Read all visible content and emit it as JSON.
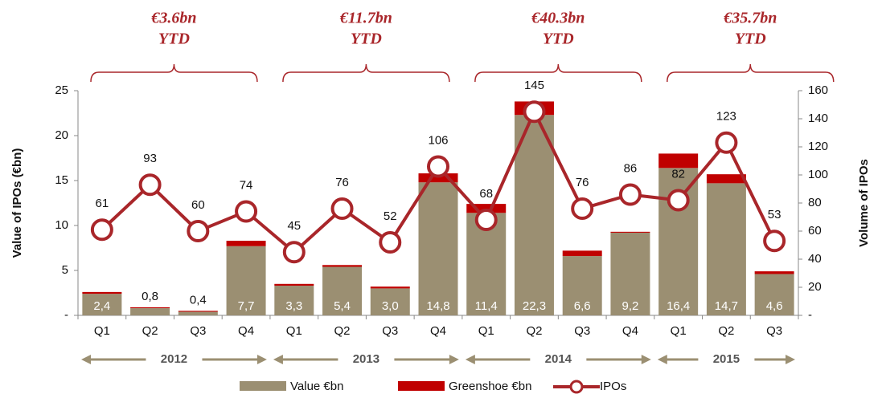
{
  "chart_data": {
    "type": "bar-line",
    "y_label": "Value of IPOs (€bn)",
    "y2_label": "Volume of IPOs",
    "categories": [
      "Q1",
      "Q2",
      "Q3",
      "Q4",
      "Q1",
      "Q2",
      "Q3",
      "Q4",
      "Q1",
      "Q2",
      "Q3",
      "Q4",
      "Q1",
      "Q2",
      "Q3"
    ],
    "years": [
      "2012",
      "2013",
      "2014",
      "2015"
    ],
    "annotations": [
      [
        "€3.6bn",
        "YTD"
      ],
      [
        "€11.7bn",
        "YTD"
      ],
      [
        "€40.3bn",
        "YTD"
      ],
      [
        "€35.7bn",
        "YTD"
      ]
    ],
    "series": [
      {
        "name": "Value €bn",
        "color": "#9b8f72",
        "kind": "bar",
        "values": [
          2.4,
          0.8,
          0.4,
          7.7,
          3.3,
          5.4,
          3.0,
          14.8,
          11.4,
          22.3,
          6.6,
          9.2,
          16.4,
          14.7,
          4.6
        ],
        "value_labels": [
          "2,4",
          "0,8",
          "0,4",
          "7,7",
          "3,3",
          "5,4",
          "3,0",
          "14,8",
          "11,4",
          "22,3",
          "6,6",
          "9,2",
          "16,4",
          "14,7",
          "4,6"
        ]
      },
      {
        "name": "Greenshoe €bn",
        "color": "#c00000",
        "kind": "bar",
        "values": [
          0.2,
          0.1,
          0.1,
          0.6,
          0.2,
          0.2,
          0.2,
          1.0,
          1.0,
          1.5,
          0.6,
          0.1,
          1.6,
          1.0,
          0.3
        ]
      },
      {
        "name": "IPOs",
        "color": "#a9262a",
        "kind": "line",
        "axis": "y2",
        "values": [
          61,
          93,
          60,
          74,
          45,
          76,
          52,
          106,
          68,
          145,
          76,
          86,
          82,
          123,
          53
        ]
      }
    ],
    "ylim": [
      0,
      25
    ],
    "yticks": [
      {
        "value": 0,
        "label": "-"
      },
      5,
      10,
      15,
      20,
      25
    ],
    "y2lim": [
      0,
      160
    ],
    "y2ticks": [
      {
        "value": 0,
        "label": "-"
      },
      20,
      40,
      60,
      80,
      100,
      120,
      140,
      160
    ]
  }
}
